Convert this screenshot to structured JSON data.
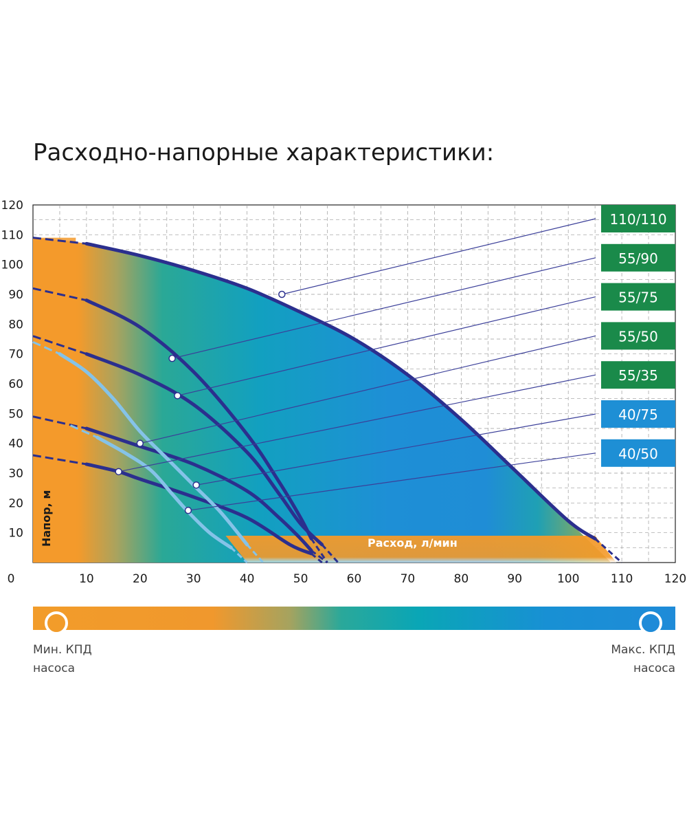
{
  "title": "Расходно-напорные характеристики:",
  "chart_data": {
    "type": "line",
    "title": "Расходно-напорные характеристики:",
    "xlabel": "Расход, л/мин",
    "ylabel": "Напор, м",
    "xlim": [
      0,
      120
    ],
    "ylim": [
      0,
      120
    ],
    "x_ticks": [
      "0",
      "10",
      "20",
      "30",
      "40",
      "50",
      "60",
      "70",
      "80",
      "90",
      "100",
      "110",
      "120"
    ],
    "y_ticks": [
      "10",
      "20",
      "30",
      "40",
      "50",
      "60",
      "70",
      "80",
      "90",
      "100",
      "110",
      "120"
    ],
    "grid": true,
    "series": [
      {
        "name": "110/110",
        "color": "#2b2f8e",
        "label_color": "#1a8a4a",
        "x": [
          0,
          10,
          20,
          30,
          40,
          50,
          60,
          70,
          80,
          90,
          100,
          105,
          110
        ],
        "y": [
          109,
          107,
          103,
          98,
          92,
          84,
          75,
          63,
          48,
          31,
          14,
          8,
          0
        ],
        "marker": [
          46.5,
          90
        ]
      },
      {
        "name": "55/90",
        "color": "#2b2f8e",
        "label_color": "#1a8a4a",
        "x": [
          0,
          10,
          20,
          30,
          40,
          46,
          50,
          52,
          55
        ],
        "y": [
          92,
          88,
          79,
          64,
          43,
          27,
          15,
          8,
          0
        ],
        "marker": [
          26,
          68.5
        ]
      },
      {
        "name": "55/75",
        "color": "#2b2f8e",
        "label_color": "#1a8a4a",
        "x": [
          0,
          10,
          20,
          30,
          40,
          46,
          50,
          54,
          57
        ],
        "y": [
          76,
          70,
          63,
          53,
          37,
          23,
          13,
          6,
          0
        ],
        "marker": [
          27,
          56
        ]
      },
      {
        "name": "55/50",
        "color": "#2b2f8e",
        "label_color": "#1a8a4a",
        "x": [
          0,
          10,
          20,
          30,
          40,
          46,
          50,
          52,
          55
        ],
        "y": [
          49,
          45,
          39,
          33,
          24,
          15,
          8,
          4,
          0
        ],
        "marker": [
          20,
          40
        ]
      },
      {
        "name": "55/35",
        "color": "#2b2f8e",
        "label_color": "#1a8a4a",
        "x": [
          0,
          10,
          16,
          20,
          30,
          40,
          48,
          52,
          54
        ],
        "y": [
          36,
          33,
          30.5,
          28,
          22,
          15,
          6,
          3,
          0
        ],
        "marker": [
          16,
          30.5
        ]
      },
      {
        "name": "40/75",
        "color": "#85c3e8",
        "label_color": "#1e8fd5",
        "x": [
          0,
          5,
          10,
          15,
          20,
          25,
          30,
          35,
          40,
          43
        ],
        "y": [
          74,
          70,
          64,
          55,
          44,
          35,
          26,
          17,
          6,
          0
        ],
        "marker": [
          30.5,
          26
        ]
      },
      {
        "name": "40/50",
        "color": "#85c3e8",
        "label_color": "#1e8fd5",
        "x": [
          7,
          12,
          17,
          22,
          26,
          29,
          33,
          37,
          40
        ],
        "y": [
          46,
          42,
          37,
          31,
          23,
          17,
          10,
          5,
          0
        ],
        "marker": [
          29,
          17.5
        ]
      }
    ]
  },
  "legend": {
    "min_label": "Мин. КПД",
    "min_sub": "насоса",
    "max_label": "Макс. КПД",
    "max_sub": "насоса",
    "min_color": "#f29c2a",
    "max_color": "#1f8bd8"
  }
}
